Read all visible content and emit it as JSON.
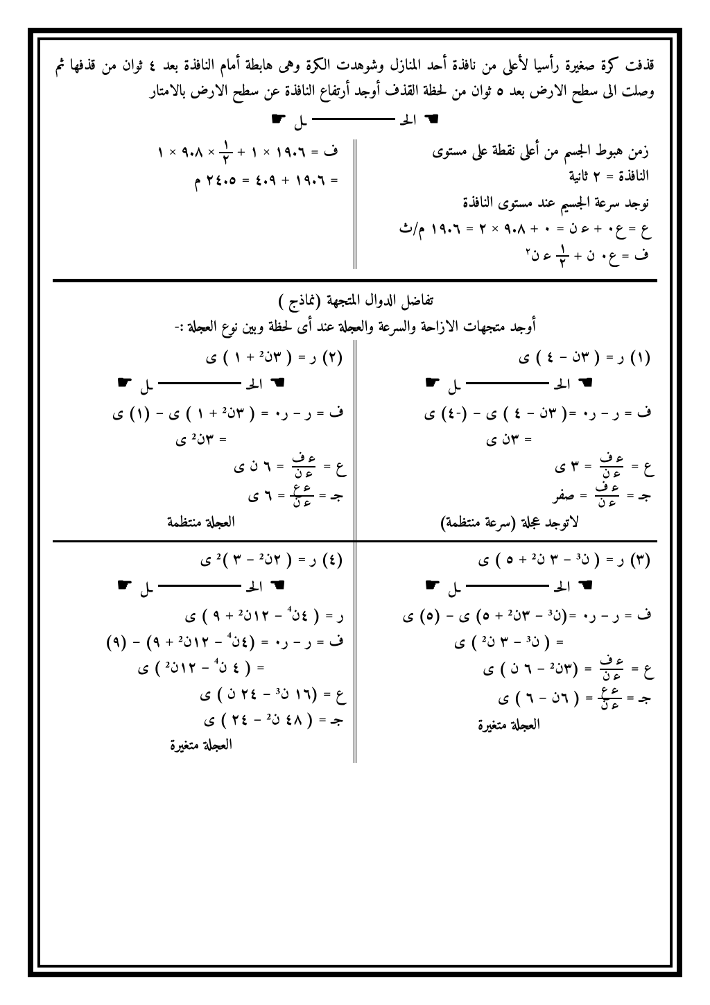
{
  "intro": "قذفت كرة صغيرة رأسيا لأعلى من نافذة أحد المنازل وشوهدت الكرة وهى هابطة أمام النافذة بعد ٤ ثوان من قذفها ثم وصلت الى سطح الارض بعد ٥ ثوان من لحظة القذف أوجد أرتفاع النافذة عن سطح الارض بالامتار",
  "sol_label_a": "الحـ",
  "sol_label_b": "ـل",
  "top_right": {
    "l1": "زمن هبوط الجسم من أعلى نقطة على مستوى",
    "l2": "النافذة = ٢ ثانية",
    "l3": "نوجد سرعة الجسيم عند مستوى النافذة",
    "l4": "ع = ع٠ + ﻋ ن = ٠ + ٩.٨ × ٢ = ١٩.٦ م/ث",
    "l5_a": "ف = ع٠ ن + ",
    "l5_frac_n": "١",
    "l5_frac_d": "٢",
    "l5_b": " ﻋ ن"
  },
  "top_left": {
    "l1_a": "ف = ١٩.٦ × ١ + ",
    "l1_frac_n": "١",
    "l1_frac_d": "٢",
    "l1_b": " × ٩.٨ × ١",
    "l2": "= ١٩.٦ + ٤.٩ = ٢٤.٥ م"
  },
  "mid_title1": "تفاضل الدوال المتجهة (نماذج )",
  "mid_title2": "أوجد متجهات الازاحة والسرعة والعجلة عند أى لحظة وبين نوع العجلة :-",
  "p1": {
    "head": "(١) ر = ( ٣ن – ٤ ) ى",
    "l1": "ف = ر – ر٠ =( ٣ن – ٤ ) ى – (-٤) ى",
    "l2": "= ٣ن ى",
    "l3_a": "ع =",
    "l3_frac_n": "ﻋ ف",
    "l3_frac_d": "ﻋ ن",
    "l3_b": "= ٣ ى",
    "l4_a": "جـ =",
    "l4_frac_n": "ﻋ ف",
    "l4_frac_d": "ﻋ ن",
    "l4_b": " = صفر",
    "foot": "لاتوجد عجلة (سرعة منتظمة)"
  },
  "p2": {
    "head": "(٢) ر = ( ٣ن² + ١ ) ى",
    "l1": "ف = ر – ر٠ = ( ٣ن² + ١ ) ى – (١) ى",
    "l2": "= ٣ن² ى",
    "l3_a": "ع =",
    "l3_frac_n": "ﻋ ف",
    "l3_frac_d": "ﻋ ن",
    "l3_b": "= ٦ ن  ى",
    "l4_a": "جـ = ",
    "l4_frac_n": "ﻋ ع",
    "l4_frac_d": "ﻋ ن",
    "l4_b": " = ٦ ى",
    "foot": "العجلة منتظمة"
  },
  "p3": {
    "head": "(٣) ر = ( ن³ – ٣ ن² + ٥ ) ى",
    "l1": "ف = ر – ر٠ =(ن³ – ٣ن² + ٥) ى – (٥) ى",
    "l2": "= ( ن³ – ٣ ن² ) ى",
    "l3_a": "ع = ",
    "l3_frac_n": "ﻋ ف",
    "l3_frac_d": "ﻋ ن",
    "l3_b": " = (٣ن² – ٦ ن ) ى",
    "l4_a": "جـ =",
    "l4_frac_n": "ﻋ ع",
    "l4_frac_d": "ﻋ ن",
    "l4_b": " = ( ٦ن – ٦ ) ى",
    "foot": "العجلة متغيرة"
  },
  "p4": {
    "head": "(٤) ر = ( ٢ن² – ٣ )² ى",
    "l1": "ر = ( ٤ن⁴ – ١٢ن² + ٩ ) ى",
    "l2": "ف = ر – ر٠ = (٤ن⁴ – ١٢ن² + ٩) – (٩)",
    "l3": "= ( ٤ ن⁴ – ١٢ن² ) ى",
    "l4": "ع = (١٦ ن³ – ٢٤ ن ) ى",
    "l5": "جـ = ( ٤٨ ن² – ٢٤ ) ى",
    "foot": "العجلة متغيرة"
  }
}
